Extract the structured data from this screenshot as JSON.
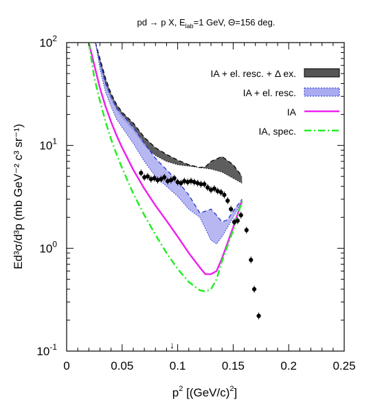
{
  "chart_data": {
    "type": "line",
    "title": {
      "main": "pd → p X, E",
      "sub": "lab",
      "rest": "=1 GeV, Θ=156 deg."
    },
    "xlabel": {
      "base": "p",
      "sup": "2",
      "rest": " [(GeV/c)",
      "sup2": "2",
      "end": "]"
    },
    "ylabel": "Ed³σ/d³p (mb GeV⁻² c³ sr⁻¹)",
    "xlim": [
      0,
      0.25
    ],
    "ylim": [
      0.1,
      100
    ],
    "yscale": "log",
    "grid": false,
    "legend_position": "top-right",
    "x_ticks": [
      "0",
      "0.05",
      "0.1",
      "0.15",
      "0.2",
      "0.25"
    ],
    "x_tick_values": [
      0,
      0.05,
      0.1,
      0.15,
      0.2,
      0.25
    ],
    "y_ticks": [
      {
        "value": 0.1,
        "base": "10",
        "sup": "-1"
      },
      {
        "value": 1,
        "base": "10",
        "sup": "0"
      },
      {
        "value": 10,
        "base": "10",
        "sup": "1"
      },
      {
        "value": 100,
        "base": "10",
        "sup": "2"
      }
    ],
    "arrow_marker": {
      "x": 0.095,
      "symbol": "↓"
    },
    "legend": [
      {
        "label": "IA + el. resc. + Δ ex.",
        "style": "band-dark",
        "color": "#555555"
      },
      {
        "label": "IA + el. resc.",
        "style": "band-light",
        "color": "#aaaaf0"
      },
      {
        "label": "IA",
        "style": "solid",
        "color": "#ee22ee"
      },
      {
        "label": "IA, spec.",
        "style": "dashdot",
        "color": "#22ee22"
      }
    ],
    "series": [
      {
        "name": "IA + el. resc. + Δ ex.",
        "kind": "band",
        "color": "#555555",
        "x": [
          0.026,
          0.03,
          0.035,
          0.04,
          0.045,
          0.05,
          0.06,
          0.07,
          0.08,
          0.09,
          0.1,
          0.11,
          0.12,
          0.125,
          0.13,
          0.14,
          0.15,
          0.158
        ],
        "upper": [
          100,
          70,
          45,
          32,
          25,
          21,
          16.5,
          12,
          9.5,
          8.2,
          7.2,
          6.5,
          6.1,
          6.2,
          7,
          7.8,
          6.5,
          5.0
        ],
        "lower": [
          100,
          60,
          38,
          28,
          22,
          18.5,
          14,
          10,
          8,
          7,
          6.5,
          6.3,
          6.1,
          6.0,
          5.9,
          5.5,
          4.8,
          4.3
        ]
      },
      {
        "name": "IA + el. resc.",
        "kind": "band",
        "color": "#aaaaf0",
        "x": [
          0.026,
          0.03,
          0.035,
          0.04,
          0.045,
          0.05,
          0.06,
          0.07,
          0.08,
          0.09,
          0.1,
          0.11,
          0.12,
          0.13,
          0.135,
          0.14,
          0.145,
          0.15,
          0.158
        ],
        "upper": [
          100,
          65,
          40,
          30,
          23,
          20,
          15,
          10.5,
          7.5,
          5.8,
          4.5,
          3.3,
          2.2,
          2.4,
          2.1,
          1.8,
          1.9,
          2.3,
          3.0
        ],
        "lower": [
          100,
          55,
          33,
          24,
          18,
          15,
          10.5,
          7,
          5,
          4,
          3.2,
          2.4,
          2.0,
          1.2,
          1.1,
          1.3,
          1.6,
          2.0,
          2.9
        ]
      },
      {
        "name": "IA",
        "kind": "line",
        "color": "#ee22ee",
        "x": [
          0.02,
          0.025,
          0.03,
          0.035,
          0.04,
          0.045,
          0.05,
          0.06,
          0.07,
          0.08,
          0.09,
          0.1,
          0.11,
          0.12,
          0.125,
          0.13,
          0.135,
          0.14,
          0.15,
          0.158
        ],
        "values": [
          100,
          60,
          36,
          24,
          17,
          12.5,
          9.5,
          5.8,
          3.8,
          2.6,
          1.85,
          1.3,
          0.9,
          0.65,
          0.56,
          0.56,
          0.6,
          0.8,
          1.6,
          2.9
        ]
      },
      {
        "name": "IA, spec.",
        "kind": "line",
        "color": "#22ee22",
        "x": [
          0.02,
          0.025,
          0.03,
          0.035,
          0.04,
          0.045,
          0.05,
          0.06,
          0.07,
          0.08,
          0.09,
          0.1,
          0.11,
          0.12,
          0.125,
          0.13,
          0.135,
          0.14,
          0.15,
          0.158
        ],
        "values": [
          100,
          45,
          27,
          17,
          11.5,
          8.2,
          6,
          3.4,
          2.1,
          1.35,
          0.9,
          0.63,
          0.47,
          0.39,
          0.38,
          0.4,
          0.5,
          0.75,
          1.5,
          2.9
        ]
      },
      {
        "name": "",
        "kind": "points",
        "color": "#000000",
        "x": [
          0.067,
          0.07,
          0.073,
          0.076,
          0.079,
          0.082,
          0.085,
          0.088,
          0.091,
          0.094,
          0.097,
          0.1,
          0.103,
          0.106,
          0.109,
          0.112,
          0.115,
          0.118,
          0.121,
          0.124,
          0.127,
          0.13,
          0.133,
          0.136,
          0.139,
          0.142,
          0.145,
          0.148,
          0.151,
          0.154,
          0.157,
          0.162,
          0.166,
          0.169,
          0.173
        ],
        "values": [
          5.4,
          4.9,
          5.0,
          4.7,
          4.8,
          4.6,
          4.7,
          4.9,
          4.5,
          4.6,
          4.8,
          4.4,
          4.3,
          4.5,
          4.4,
          4.5,
          4.4,
          4.3,
          4.2,
          4.2,
          3.9,
          3.7,
          3.8,
          3.6,
          3.5,
          3.3,
          2.9,
          2.4,
          1.8,
          1.85,
          2.1,
          1.5,
          0.77,
          0.4,
          0.22
        ]
      }
    ]
  }
}
